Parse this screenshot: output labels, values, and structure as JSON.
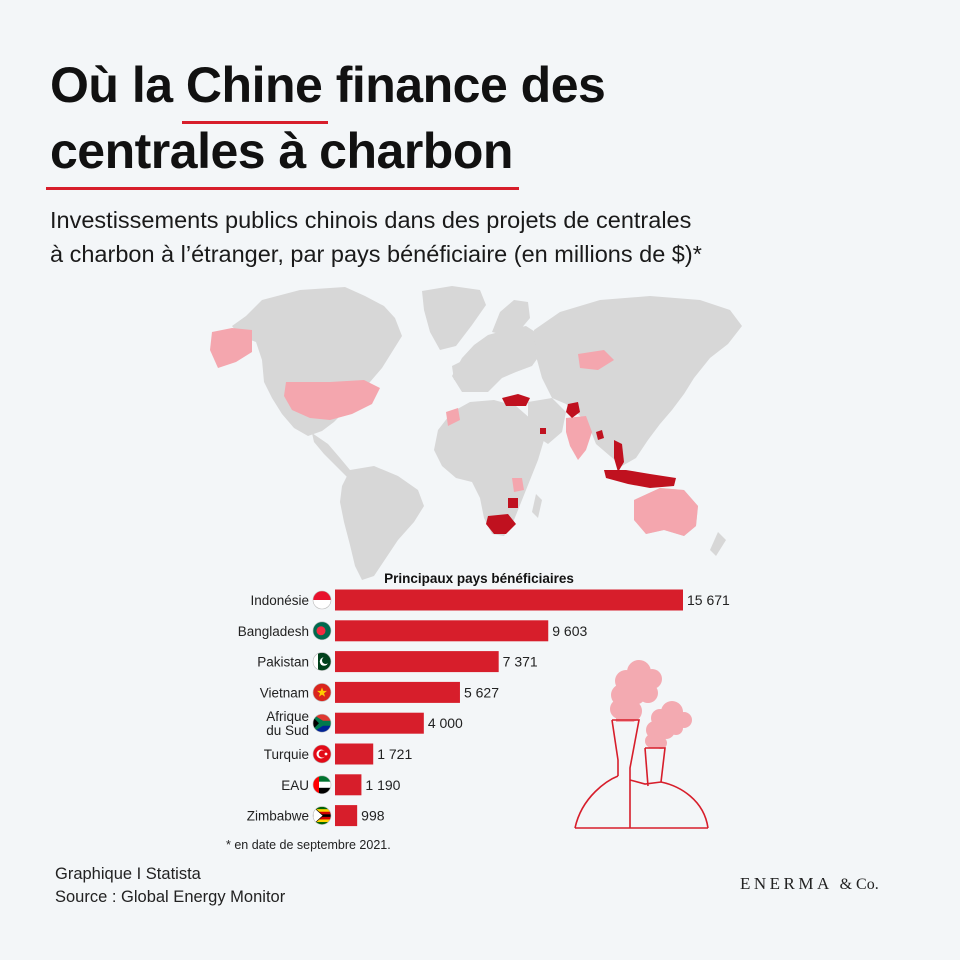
{
  "header": {
    "title_part1": "Où la ",
    "title_highlight": "Chine",
    "title_part2": " finance des",
    "title_line2": "centrales à charbon",
    "subtitle_line1": "Investissements publics chinois dans des projets de centrales",
    "subtitle_line2": "à charbon à l’étranger, par pays bénéficiaire (en millions de $)*"
  },
  "colors": {
    "accent": "#d71e2b",
    "bar": "#d71e2b",
    "land": "#d7d7d7",
    "highlight_dark": "#c0111f",
    "highlight_light": "#f4a6ae",
    "background": "#f3f6f8"
  },
  "chart_data": {
    "type": "bar",
    "orientation": "horizontal",
    "title": "Principaux pays bénéficiaires",
    "categories": [
      "Indonésie",
      "Bangladesh",
      "Pakistan",
      "Vietnam",
      "Afrique du Sud",
      "Turquie",
      "EAU",
      "Zimbabwe"
    ],
    "values": [
      15671,
      9603,
      7371,
      5627,
      4000,
      1721,
      1190,
      998
    ],
    "value_labels": [
      "15 671",
      "9 603",
      "7 371",
      "5 627",
      "4 000",
      "1 721",
      "1 190",
      "998"
    ],
    "flags": [
      "indonesia-flag-icon",
      "bangladesh-flag-icon",
      "pakistan-flag-icon",
      "vietnam-flag-icon",
      "south-africa-flag-icon",
      "turkey-flag-icon",
      "uae-flag-icon",
      "zimbabwe-flag-icon"
    ],
    "unit": "millions de $",
    "xlim": [
      0,
      15671
    ]
  },
  "footnote": "* en date de septembre 2021.",
  "footer": {
    "line1": "Graphique I Statista",
    "line2": "Source : Global Energy Monitor"
  },
  "brand": {
    "name": "ENERMA",
    "suffix": "& Co."
  },
  "map": {
    "highlighted_dark": [
      "Indonésie",
      "Bangladesh",
      "Pakistan",
      "Vietnam",
      "Afrique du Sud",
      "Turquie",
      "EAU",
      "Zimbabwe"
    ]
  },
  "illustration": "power-plant-icon"
}
